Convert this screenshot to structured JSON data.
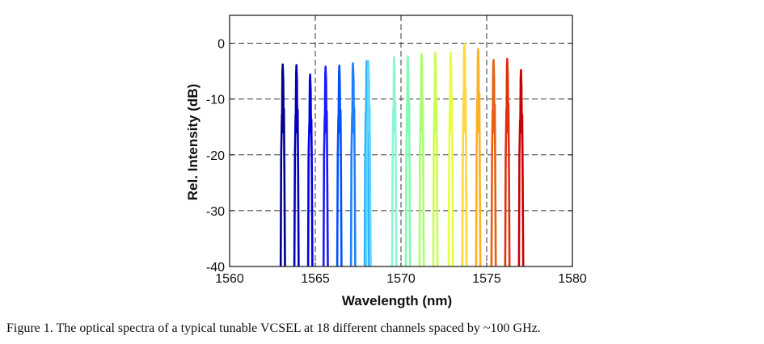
{
  "caption": "Figure 1.  The optical spectra of a typical tunable VCSEL at 18 different channels spaced by ~100 GHz.",
  "chart_data": {
    "type": "line",
    "title": "",
    "xlabel": "Wavelength (nm)",
    "ylabel": "Rel. Intensity (dB)",
    "xlim": [
      1560,
      1580
    ],
    "ylim": [
      -40,
      5
    ],
    "xticks": [
      1560,
      1565,
      1570,
      1575,
      1580
    ],
    "yticks": [
      0,
      -10,
      -20,
      -30,
      -40
    ],
    "xtick_labels": [
      "1560",
      "1565",
      "1570",
      "1575",
      "1580"
    ],
    "ytick_labels": [
      "0",
      "-10",
      "-20",
      "-30",
      "-40"
    ],
    "grid": "dashed at x = 1565, 1570, 1575 and y = 0, -10, -20, -30",
    "series": [
      {
        "color": "#00008f",
        "center": 1563.1,
        "peak": -3.8
      },
      {
        "color": "#0000b8",
        "center": 1563.9,
        "peak": -3.9
      },
      {
        "color": "#0000e6",
        "center": 1564.7,
        "peak": -5.6
      },
      {
        "color": "#1a1aff",
        "center": 1565.6,
        "peak": -4.2
      },
      {
        "color": "#0050ff",
        "center": 1566.4,
        "peak": -4.0
      },
      {
        "color": "#1f7fff",
        "center": 1567.2,
        "peak": -3.6
      },
      {
        "color": "#30b0ff",
        "center": 1568.0,
        "peak": -3.2
      },
      {
        "color": "#5fd8ff",
        "center": 1568.1,
        "peak": -3.2
      },
      {
        "color": "#8cf5d8",
        "center": 1569.6,
        "peak": -2.5
      },
      {
        "color": "#80ffb0",
        "center": 1570.4,
        "peak": -2.3
      },
      {
        "color": "#a8ff70",
        "center": 1571.2,
        "peak": -1.9
      },
      {
        "color": "#c8ff50",
        "center": 1572.0,
        "peak": -1.7
      },
      {
        "color": "#e6ff40",
        "center": 1572.9,
        "peak": -1.6
      },
      {
        "color": "#ffd840",
        "center": 1573.7,
        "peak": -0.1
      },
      {
        "color": "#ffb020",
        "center": 1574.5,
        "peak": -1.0
      },
      {
        "color": "#e56010",
        "center": 1575.4,
        "peak": -3.0
      },
      {
        "color": "#e03010",
        "center": 1576.2,
        "peak": -2.8
      },
      {
        "color": "#c80000",
        "center": 1577.0,
        "peak": -4.8
      }
    ]
  }
}
